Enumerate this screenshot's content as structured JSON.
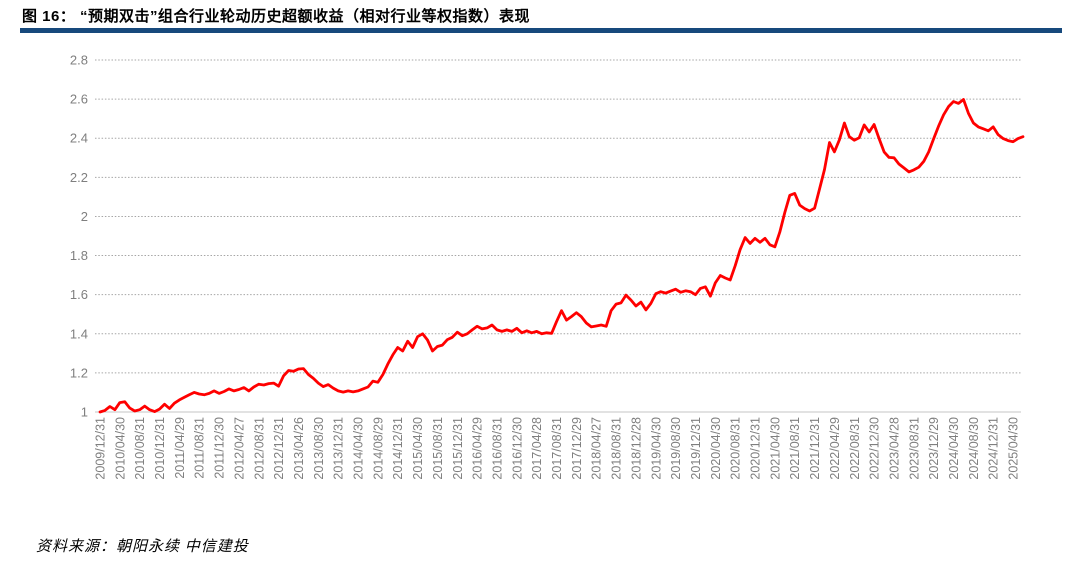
{
  "page": {
    "title": "图 16：  “预期双击”组合行业轮动历史超额收益（相对行业等权指数）表现",
    "source_text": "资料来源：朝阳永续  中信建投"
  },
  "colors": {
    "title_rule": "#17497C",
    "line": "#FF0000",
    "grid": "#A6A6A6",
    "baseline": "#C6C6C6",
    "tick_label": "#7F7F7F"
  },
  "chart_data": {
    "type": "line",
    "title": "“预期双击”组合行业轮动历史超额收益（相对行业等权指数）表现",
    "xlabel": "",
    "ylabel": "",
    "ylim": [
      1,
      2.8
    ],
    "yticks": [
      "1",
      "1.2",
      "1.4",
      "1.6",
      "1.8",
      "2",
      "2.2",
      "2.4",
      "2.6",
      "2.8"
    ],
    "grid": "horizontal-dashed",
    "legend_position": "none",
    "x_label_every_n_points": 4,
    "x_tick_labels": [
      "2009/12/31",
      "2010/04/30",
      "2010/08/31",
      "2010/12/31",
      "2011/04/29",
      "2011/08/31",
      "2011/12/30",
      "2012/04/27",
      "2012/08/31",
      "2012/12/31",
      "2013/04/26",
      "2013/08/30",
      "2013/12/31",
      "2014/04/30",
      "2014/08/29",
      "2014/12/31",
      "2015/04/30",
      "2015/08/31",
      "2015/12/31",
      "2016/04/29",
      "2016/08/31",
      "2016/12/30",
      "2017/04/28",
      "2017/08/31",
      "2017/12/29",
      "2018/04/27",
      "2018/08/31",
      "2018/12/28",
      "2019/04/30",
      "2019/08/30",
      "2019/12/31",
      "2020/04/30",
      "2020/08/31",
      "2020/12/31",
      "2021/04/30",
      "2021/08/31",
      "2021/12/31",
      "2022/04/29",
      "2022/08/31",
      "2022/12/30",
      "2023/04/28",
      "2023/08/31",
      "2023/12/29",
      "2024/04/30",
      "2024/08/30",
      "2024/12/31",
      "2025/04/30"
    ],
    "series": [
      {
        "name": "“预期双击”组合超额收益（相对行业等权指数）",
        "frequency": "monthly",
        "values": [
          1.0,
          1.008,
          1.028,
          1.012,
          1.048,
          1.052,
          1.02,
          1.005,
          1.012,
          1.03,
          1.012,
          1.002,
          1.015,
          1.04,
          1.018,
          1.045,
          1.062,
          1.075,
          1.088,
          1.1,
          1.092,
          1.088,
          1.095,
          1.108,
          1.095,
          1.105,
          1.118,
          1.108,
          1.115,
          1.125,
          1.108,
          1.128,
          1.142,
          1.138,
          1.145,
          1.148,
          1.132,
          1.185,
          1.212,
          1.208,
          1.22,
          1.222,
          1.192,
          1.172,
          1.148,
          1.13,
          1.14,
          1.122,
          1.108,
          1.102,
          1.108,
          1.103,
          1.108,
          1.118,
          1.128,
          1.158,
          1.152,
          1.192,
          1.245,
          1.292,
          1.33,
          1.312,
          1.362,
          1.33,
          1.385,
          1.4,
          1.368,
          1.312,
          1.335,
          1.342,
          1.37,
          1.382,
          1.408,
          1.39,
          1.4,
          1.42,
          1.438,
          1.425,
          1.43,
          1.445,
          1.42,
          1.412,
          1.42,
          1.412,
          1.428,
          1.405,
          1.415,
          1.405,
          1.412,
          1.4,
          1.405,
          1.402,
          1.462,
          1.518,
          1.47,
          1.488,
          1.508,
          1.488,
          1.455,
          1.435,
          1.44,
          1.445,
          1.438,
          1.518,
          1.552,
          1.558,
          1.598,
          1.572,
          1.542,
          1.562,
          1.522,
          1.555,
          1.605,
          1.615,
          1.608,
          1.618,
          1.628,
          1.612,
          1.62,
          1.615,
          1.6,
          1.632,
          1.64,
          1.592,
          1.66,
          1.698,
          1.685,
          1.675,
          1.748,
          1.83,
          1.892,
          1.862,
          1.888,
          1.868,
          1.888,
          1.855,
          1.845,
          1.92,
          2.02,
          2.108,
          2.118,
          2.058,
          2.04,
          2.028,
          2.042,
          2.14,
          2.24,
          2.378,
          2.33,
          2.392,
          2.478,
          2.408,
          2.39,
          2.402,
          2.468,
          2.432,
          2.47,
          2.398,
          2.33,
          2.302,
          2.3,
          2.268,
          2.248,
          2.228,
          2.238,
          2.252,
          2.282,
          2.33,
          2.398,
          2.462,
          2.52,
          2.562,
          2.588,
          2.578,
          2.598,
          2.528,
          2.478,
          2.458,
          2.448,
          2.438,
          2.458,
          2.418,
          2.398,
          2.388,
          2.382,
          2.398,
          2.408
        ]
      }
    ]
  }
}
